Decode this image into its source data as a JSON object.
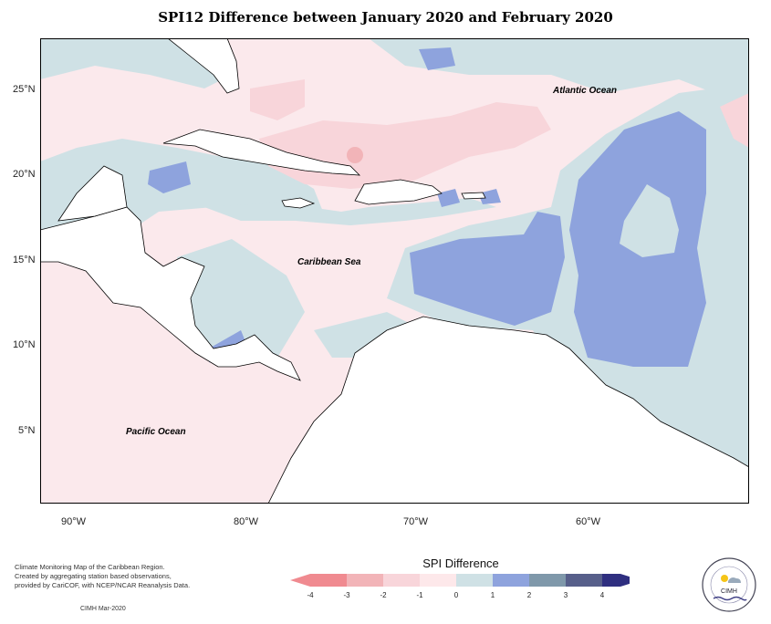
{
  "title": "SPI12 Difference between January 2020 and February 2020",
  "map": {
    "labels": {
      "atlantic": "Atlantic Ocean",
      "caribbean": "Caribbean Sea",
      "pacific": "Pacific Ocean"
    },
    "lat_ticks": [
      "25°N",
      "20°N",
      "15°N",
      "10°N",
      "5°N"
    ],
    "lon_ticks": [
      "90°W",
      "80°W",
      "70°W",
      "60°W"
    ]
  },
  "legend": {
    "title": "SPI Difference",
    "ticks": [
      "-4",
      "-3",
      "-2",
      "-1",
      "0",
      "1",
      "2",
      "3",
      "4"
    ],
    "colors": [
      "#f08a90",
      "#f2b4b8",
      "#f8d5da",
      "#fde8ea",
      "#cfe1e5",
      "#8ea3dd",
      "#7f98aa",
      "#575f8a",
      "#2f2f80"
    ]
  },
  "footnote": {
    "line1": "Climate Monitoring Map of the Caribbean Region.",
    "line2": "Created by aggregating station based observations,",
    "line3": "provided by CariCOF, with NCEP/NCAR Reanalysis Data.",
    "credit": "CIMH Mar-2020"
  },
  "logo": {
    "text": "CIMH"
  }
}
